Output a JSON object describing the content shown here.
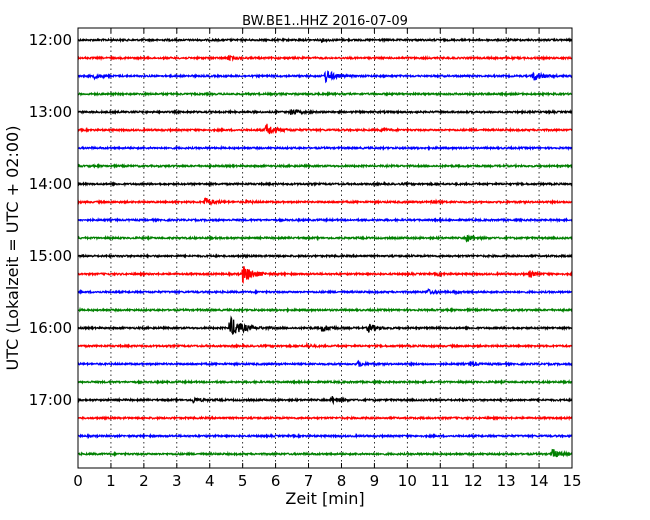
{
  "chart_data": {
    "type": "line",
    "title": "BW.BE1..HHZ 2016-07-09",
    "xlabel": "Zeit  [min]",
    "ylabel": "UTC (Lokalzeit = UTC + 02:00)",
    "xlim": [
      0,
      15
    ],
    "x_ticks": [
      "0",
      "1",
      "2",
      "3",
      "4",
      "5",
      "6",
      "7",
      "8",
      "9",
      "10",
      "11",
      "12",
      "13",
      "14",
      "15"
    ],
    "y_ticks": [
      "12:00",
      "13:00",
      "14:00",
      "15:00",
      "16:00",
      "17:00"
    ],
    "grid": true,
    "colors": [
      "#000000",
      "#ff0000",
      "#0000ff",
      "#008000"
    ],
    "traces": [
      {
        "start": "12:00",
        "color": "#000000",
        "events": [
          {
            "t": 7.4,
            "amp": 0.3
          }
        ]
      },
      {
        "start": "12:15",
        "color": "#ff0000",
        "events": [
          {
            "t": 4.55,
            "amp": 0.5
          }
        ]
      },
      {
        "start": "12:30",
        "color": "#0000ff",
        "events": [
          {
            "t": 0.5,
            "amp": 0.5
          },
          {
            "t": 7.5,
            "amp": 1.5
          },
          {
            "t": 13.8,
            "amp": 1.2
          }
        ]
      },
      {
        "start": "12:45",
        "color": "#008000",
        "events": []
      },
      {
        "start": "13:00",
        "color": "#000000",
        "events": [
          {
            "t": 6.45,
            "amp": 0.8
          }
        ]
      },
      {
        "start": "13:15",
        "color": "#ff0000",
        "events": [
          {
            "t": 5.7,
            "amp": 1.5
          },
          {
            "t": 9.2,
            "amp": 0.4
          }
        ]
      },
      {
        "start": "13:30",
        "color": "#0000ff",
        "events": []
      },
      {
        "start": "13:45",
        "color": "#008000",
        "events": []
      },
      {
        "start": "14:00",
        "color": "#000000",
        "events": []
      },
      {
        "start": "14:15",
        "color": "#ff0000",
        "events": [
          {
            "t": 3.85,
            "amp": 1.0
          },
          {
            "t": 5.1,
            "amp": 0.3
          },
          {
            "t": 10.7,
            "amp": 0.4
          }
        ]
      },
      {
        "start": "14:30",
        "color": "#0000ff",
        "events": []
      },
      {
        "start": "14:45",
        "color": "#008000",
        "events": [
          {
            "t": 11.8,
            "amp": 0.8
          }
        ]
      },
      {
        "start": "15:00",
        "color": "#000000",
        "events": []
      },
      {
        "start": "15:15",
        "color": "#ff0000",
        "events": [
          {
            "t": 5.0,
            "amp": 1.9
          },
          {
            "t": 10.9,
            "amp": 0.3
          },
          {
            "t": 13.7,
            "amp": 0.7
          }
        ]
      },
      {
        "start": "15:30",
        "color": "#0000ff",
        "events": [
          {
            "t": 10.6,
            "amp": 0.6
          },
          {
            "t": 11.4,
            "amp": 0.3
          }
        ]
      },
      {
        "start": "15:45",
        "color": "#008000",
        "events": []
      },
      {
        "start": "16:00",
        "color": "#000000",
        "events": [
          {
            "t": 4.6,
            "amp": 2.5
          },
          {
            "t": 7.4,
            "amp": 0.9
          },
          {
            "t": 8.8,
            "amp": 1.0
          }
        ]
      },
      {
        "start": "16:15",
        "color": "#ff0000",
        "events": [
          {
            "t": 6.95,
            "amp": 0.4
          }
        ]
      },
      {
        "start": "16:30",
        "color": "#0000ff",
        "events": [
          {
            "t": 8.5,
            "amp": 0.6
          },
          {
            "t": 11.9,
            "amp": 0.5
          }
        ]
      },
      {
        "start": "16:45",
        "color": "#008000",
        "events": []
      },
      {
        "start": "17:00",
        "color": "#000000",
        "events": [
          {
            "t": 3.5,
            "amp": 0.6
          },
          {
            "t": 7.7,
            "amp": 0.8
          }
        ]
      },
      {
        "start": "17:15",
        "color": "#ff0000",
        "events": []
      },
      {
        "start": "17:30",
        "color": "#0000ff",
        "events": []
      },
      {
        "start": "17:45",
        "color": "#008000",
        "events": [
          {
            "t": 14.4,
            "amp": 1.1
          }
        ]
      }
    ]
  }
}
